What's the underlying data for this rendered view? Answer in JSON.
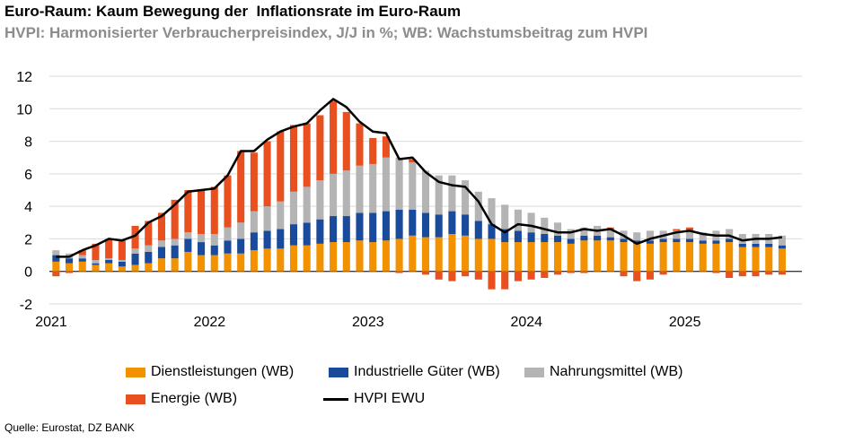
{
  "title": "Euro-Raum: Kaum Bewegung der  Inflationsrate im Euro-Raum",
  "subtitle": "HVPI: Harmonisierter Verbraucherpreisindex, J/J in %; WB: Wachstumsbeitrag zum HVPI",
  "source": "Quelle: Eurostat, DZ BANK",
  "legend": {
    "services": "Dienstleistungen (WB)",
    "goods": "Industrielle Güter (WB)",
    "food": "Nahrungsmittel (WB)",
    "energy": "Energie (WB)",
    "hicp": "HVPI EWU"
  },
  "colors": {
    "services": "#f39200",
    "goods": "#1a4a9c",
    "food": "#b4b4b4",
    "energy": "#e8501f",
    "line": "#000000",
    "grid": "#d9d9d9"
  },
  "chart_data": {
    "type": "bar",
    "stacked": true,
    "ylim": [
      -2,
      12
    ],
    "yticks": [
      -2,
      0,
      2,
      4,
      6,
      8,
      10,
      12
    ],
    "ytick_labels": [
      "-2",
      "0",
      "2",
      "4",
      "6",
      "8",
      "10",
      "12"
    ],
    "xtick_labels": [
      "2021",
      "2022",
      "2023",
      "2024",
      "2025"
    ],
    "months": [
      "2021-01",
      "2021-02",
      "2021-03",
      "2021-04",
      "2021-05",
      "2021-06",
      "2021-07",
      "2021-08",
      "2021-09",
      "2021-10",
      "2021-11",
      "2021-12",
      "2022-01",
      "2022-02",
      "2022-03",
      "2022-04",
      "2022-05",
      "2022-06",
      "2022-07",
      "2022-08",
      "2022-09",
      "2022-10",
      "2022-11",
      "2022-12",
      "2023-01",
      "2023-02",
      "2023-03",
      "2023-04",
      "2023-05",
      "2023-06",
      "2023-07",
      "2023-08",
      "2023-09",
      "2023-10",
      "2023-11",
      "2023-12",
      "2024-01",
      "2024-02",
      "2024-03",
      "2024-04",
      "2024-05",
      "2024-06",
      "2024-07",
      "2024-08",
      "2024-09",
      "2024-10",
      "2024-11",
      "2024-12",
      "2025-01",
      "2025-02",
      "2025-03",
      "2025-04",
      "2025-05",
      "2025-06",
      "2025-07",
      "2025-08"
    ],
    "series": [
      {
        "name": "Dienstleistungen (WB)",
        "key": "services",
        "values": [
          0.6,
          0.5,
          0.6,
          0.4,
          0.5,
          0.3,
          0.4,
          0.5,
          0.8,
          0.8,
          1.2,
          1.0,
          1.0,
          1.1,
          1.1,
          1.3,
          1.4,
          1.4,
          1.6,
          1.6,
          1.7,
          1.8,
          1.8,
          1.9,
          1.8,
          1.9,
          2.0,
          2.2,
          2.1,
          2.1,
          2.3,
          2.2,
          2.0,
          2.0,
          1.8,
          1.8,
          1.8,
          1.8,
          1.8,
          1.7,
          1.9,
          1.9,
          1.9,
          1.8,
          1.7,
          1.7,
          1.8,
          1.8,
          1.8,
          1.7,
          1.7,
          1.8,
          1.5,
          1.5,
          1.5,
          1.4
        ]
      },
      {
        "name": "Industrielle Güter (WB)",
        "key": "goods",
        "values": [
          0.4,
          0.3,
          0.2,
          0.1,
          0.2,
          0.3,
          0.7,
          0.7,
          0.7,
          0.8,
          0.8,
          0.8,
          0.6,
          0.8,
          0.9,
          1.1,
          1.1,
          1.2,
          1.3,
          1.4,
          1.5,
          1.6,
          1.6,
          1.7,
          1.8,
          1.8,
          1.8,
          1.6,
          1.5,
          1.4,
          1.4,
          1.3,
          1.1,
          0.9,
          0.8,
          0.7,
          0.6,
          0.5,
          0.4,
          0.3,
          0.3,
          0.3,
          0.2,
          0.2,
          0.2,
          0.2,
          0.2,
          0.2,
          0.2,
          0.2,
          0.2,
          0.2,
          0.2,
          0.2,
          0.2,
          0.2
        ]
      },
      {
        "name": "Nahrungsmittel (WB)",
        "key": "food",
        "values": [
          0.3,
          0.3,
          0.2,
          0.2,
          0.1,
          0.1,
          0.3,
          0.4,
          0.4,
          0.4,
          0.4,
          0.5,
          0.7,
          0.8,
          1.0,
          1.3,
          1.5,
          1.7,
          2.0,
          2.2,
          2.4,
          2.6,
          2.8,
          2.9,
          3.0,
          3.3,
          3.2,
          2.9,
          2.6,
          2.4,
          2.2,
          2.1,
          1.8,
          1.6,
          1.5,
          1.3,
          1.2,
          1.0,
          0.8,
          0.6,
          0.5,
          0.6,
          0.5,
          0.5,
          0.5,
          0.6,
          0.5,
          0.5,
          0.5,
          0.5,
          0.6,
          0.6,
          0.6,
          0.6,
          0.6,
          0.6
        ]
      },
      {
        "name": "Energie (WB)",
        "key": "energy",
        "values": [
          -0.3,
          -0.1,
          0.3,
          1.0,
          1.2,
          1.2,
          1.4,
          1.5,
          1.7,
          2.4,
          2.6,
          2.7,
          2.9,
          3.2,
          4.4,
          3.6,
          4.0,
          4.3,
          4.1,
          3.9,
          4.0,
          4.5,
          3.6,
          2.6,
          1.6,
          1.3,
          -0.1,
          0.2,
          -0.2,
          -0.5,
          -0.6,
          -0.3,
          -0.5,
          -1.1,
          -1.1,
          -0.6,
          -0.5,
          -0.4,
          -0.2,
          -0.1,
          -0.1,
          0.0,
          0.1,
          -0.3,
          -0.6,
          -0.5,
          -0.2,
          0.1,
          0.2,
          0.0,
          -0.1,
          -0.4,
          -0.3,
          -0.3,
          -0.2,
          -0.2
        ]
      },
      {
        "name": "HVPI EWU",
        "key": "hicp",
        "type": "line",
        "values": [
          0.9,
          0.9,
          1.3,
          1.6,
          2.0,
          1.9,
          2.2,
          3.0,
          3.4,
          4.1,
          4.9,
          5.0,
          5.1,
          5.9,
          7.4,
          7.4,
          8.1,
          8.6,
          8.9,
          9.1,
          9.9,
          10.6,
          10.1,
          9.2,
          8.6,
          8.5,
          6.9,
          7.0,
          6.1,
          5.5,
          5.3,
          5.2,
          4.3,
          2.9,
          2.4,
          2.9,
          2.8,
          2.6,
          2.4,
          2.4,
          2.6,
          2.5,
          2.6,
          2.2,
          1.7,
          2.0,
          2.2,
          2.4,
          2.5,
          2.3,
          2.2,
          2.2,
          1.9,
          2.0,
          2.0,
          2.1
        ]
      }
    ]
  }
}
